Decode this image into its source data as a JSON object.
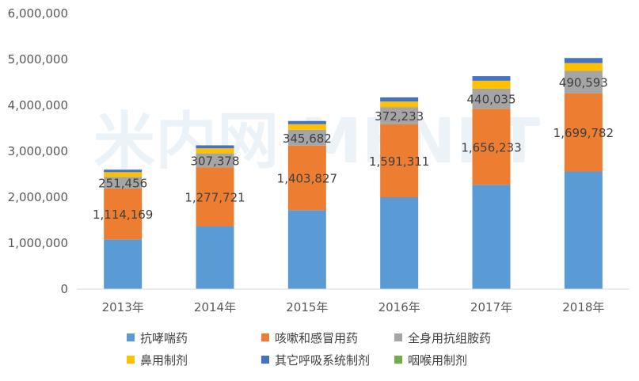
{
  "watermark": "米内网 MENET",
  "chart_data": {
    "type": "bar",
    "stacked": true,
    "categories": [
      "2013年",
      "2014年",
      "2015年",
      "2016年",
      "2017年",
      "2018年"
    ],
    "ylim": [
      0,
      6000000
    ],
    "yticks": [
      0,
      1000000,
      2000000,
      3000000,
      4000000,
      5000000,
      6000000
    ],
    "ytick_labels": [
      "0",
      "1,000,000",
      "2,000,000",
      "3,000,000",
      "4,000,000",
      "5,000,000",
      "6,000,000"
    ],
    "grid": false,
    "legend_position": "bottom",
    "series": [
      {
        "name": "抗哮喘药",
        "color": "#5b9bd5",
        "values": [
          1080000,
          1370000,
          1720000,
          2000000,
          2270000,
          2560000
        ],
        "labels": [
          "",
          "",
          "",
          "",
          "",
          ""
        ]
      },
      {
        "name": "咳嗽和感冒用药",
        "color": "#ed7d31",
        "values": [
          1114169,
          1277721,
          1403827,
          1591311,
          1656233,
          1699782
        ],
        "labels": [
          "1,114,169",
          "1,277,721",
          "1,403,827",
          "1,591,311",
          "1,656,233",
          "1,699,782"
        ]
      },
      {
        "name": "全身用抗组胺药",
        "color": "#a5a5a5",
        "values": [
          251456,
          307378,
          345682,
          372233,
          440035,
          490593
        ],
        "labels": [
          "251,456",
          "307,378",
          "345,682",
          "372,233",
          "440,035",
          "490,593"
        ]
      },
      {
        "name": "鼻用制剂",
        "color": "#ffc000",
        "values": [
          100000,
          110000,
          120000,
          120000,
          170000,
          170000
        ],
        "labels": [
          "",
          "",
          "",
          "",
          "",
          ""
        ]
      },
      {
        "name": "其它呼吸系统制剂",
        "color": "#4472c4",
        "values": [
          55000,
          65000,
          70000,
          90000,
          100000,
          110000
        ],
        "labels": [
          "",
          "",
          "",
          "",
          "",
          ""
        ]
      },
      {
        "name": "咽喉用制剂",
        "color": "#70ad47",
        "values": [
          0,
          0,
          0,
          0,
          0,
          0
        ],
        "labels": [
          "",
          "",
          "",
          "",
          "",
          ""
        ]
      }
    ]
  }
}
